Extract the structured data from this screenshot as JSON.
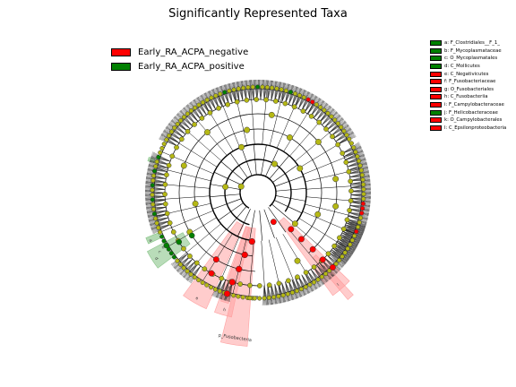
{
  "title": "Significantly Represented Taxa",
  "group_legend": [
    {
      "label": "Early_RA_ACPA_negative",
      "color": "#ff0000"
    },
    {
      "label": "Early_RA_ACPA_positive",
      "color": "#008000"
    }
  ],
  "taxa_legend": [
    {
      "text": "a: F_Clostridiales__F_1_",
      "color": "#008000"
    },
    {
      "text": "b: F_Mycoplasmataceae",
      "color": "#008000"
    },
    {
      "text": "c: O_Mycoplasmatales",
      "color": "#008000"
    },
    {
      "text": "d: C_Mollicutes",
      "color": "#008000"
    },
    {
      "text": "e: C_Negativicutes",
      "color": "#ff0000"
    },
    {
      "text": "f: F_Fusobacteriaceae",
      "color": "#ff0000"
    },
    {
      "text": "g: O_Fusobacteriales",
      "color": "#ff0000"
    },
    {
      "text": "h: C_Fusobacteriia",
      "color": "#ff0000"
    },
    {
      "text": "i: F_Campylobacteraceae",
      "color": "#ff0000"
    },
    {
      "text": "j: F_Helicobacteraceae",
      "color": "#008000"
    },
    {
      "text": "k: O_Campylobacterales",
      "color": "#ff0000"
    },
    {
      "text": "l: C_Epsilonproteobacteria",
      "color": "#ff0000"
    }
  ],
  "sector_labels": {
    "fusobacteria": "p_Fusobacteria",
    "a": "a",
    "b": "b",
    "c": "c",
    "d": "d",
    "e": "e",
    "f": "f",
    "g": "g",
    "h": "h",
    "i": "i",
    "k": "k",
    "l": "l"
  },
  "colors": {
    "node_default": "#b5b815",
    "negative": "#ff0000",
    "positive": "#008000",
    "shade_negative": "#ff9a9a",
    "shade_positive": "#7fc07f"
  }
}
